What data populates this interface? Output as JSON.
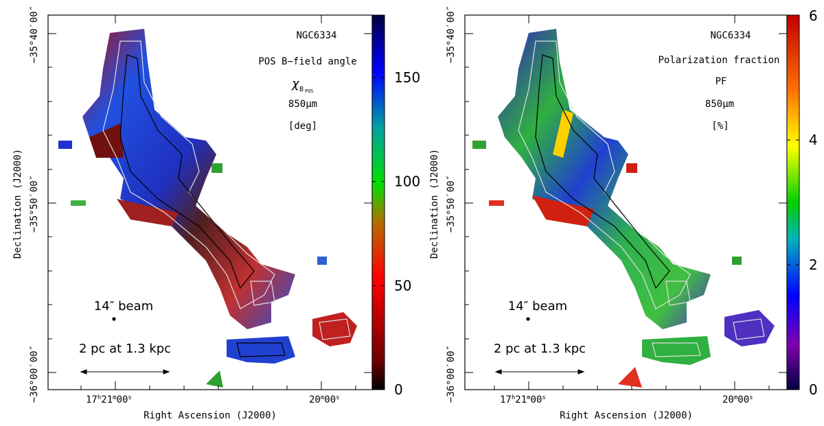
{
  "chart_data": [
    {
      "type": "heatmap",
      "object": "NGC6334",
      "quantity": "POS B−field angle",
      "symbol": "χ",
      "symbol_sub": "B",
      "symbol_subsub": "POS",
      "wavelength": "850μm",
      "unit": "[deg]",
      "xlabel": "Right Ascension (J2000)",
      "ylabel": "Declination (J2000)",
      "ra_ticks": [
        {
          "h": "17",
          "m": "21",
          "s": "00"
        },
        {
          "m": "20",
          "s": "00"
        }
      ],
      "dec_ticks": [
        "−35°40′00″",
        "−35°50′00″",
        "−36°00′00″"
      ],
      "colorbar": {
        "min": 0,
        "max": 180,
        "ticks": [
          0,
          50,
          100,
          150
        ],
        "colormap": [
          "#000000",
          "#ff0000",
          "#00d000",
          "#0000ff",
          "#000050"
        ]
      },
      "beam_label": "14″ beam",
      "scalebar_label": "2 pc at 1.3 kpc"
    },
    {
      "type": "heatmap",
      "object": "NGC6334",
      "quantity": "Polarization fraction",
      "symbol": "PF",
      "wavelength": "850μm",
      "unit": "[%]",
      "xlabel": "Right Ascension (J2000)",
      "ylabel": "Declination (J2000)",
      "ra_ticks": [
        {
          "h": "17",
          "m": "21",
          "s": "00"
        },
        {
          "m": "20",
          "s": "00"
        }
      ],
      "dec_ticks": [
        "−35°40′00″",
        "−35°50′00″",
        "−36°00′00″"
      ],
      "colorbar": {
        "min": 0,
        "max": 6,
        "ticks": [
          0,
          2,
          4,
          6
        ],
        "colormap": [
          "#000050",
          "#6000a0",
          "#0000ff",
          "#00c0c0",
          "#00d000",
          "#ffff00",
          "#ff8000",
          "#d00000"
        ]
      },
      "beam_label": "14″ beam",
      "scalebar_label": "2 pc at 1.3 kpc"
    }
  ]
}
